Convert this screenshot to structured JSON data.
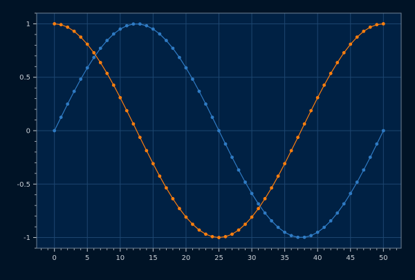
{
  "chart_data": {
    "type": "line",
    "title": "",
    "xlabel": "",
    "ylabel": "",
    "xlim": [
      -2.7,
      52.7
    ],
    "ylim": [
      -1.1,
      1.1
    ],
    "x_ticks": [
      0,
      5,
      10,
      15,
      20,
      25,
      30,
      35,
      40,
      45,
      50
    ],
    "y_ticks": [
      -1,
      -0.5,
      0,
      0.5,
      1
    ],
    "x_tick_labels": [
      "0",
      "5",
      "10",
      "15",
      "20",
      "25",
      "30",
      "35",
      "40",
      "45",
      "50"
    ],
    "y_tick_labels": [
      "-1",
      "-0.5",
      "0",
      "0.5",
      "1"
    ],
    "grid": true,
    "markers": true,
    "background_color": "#001326",
    "plot_background_color": "#002144",
    "grid_color": "#1d4670",
    "axis_color": "#c8cfd6",
    "x": [
      0,
      1,
      2,
      3,
      4,
      5,
      6,
      7,
      8,
      9,
      10,
      11,
      12,
      13,
      14,
      15,
      16,
      17,
      18,
      19,
      20,
      21,
      22,
      23,
      24,
      25,
      26,
      27,
      28,
      29,
      30,
      31,
      32,
      33,
      34,
      35,
      36,
      37,
      38,
      39,
      40,
      41,
      42,
      43,
      44,
      45,
      46,
      47,
      48,
      49,
      50
    ],
    "series": [
      {
        "color": "#2f7bc4",
        "values": [
          0,
          0.125,
          0.249,
          0.368,
          0.482,
          0.588,
          0.685,
          0.771,
          0.844,
          0.905,
          0.951,
          0.982,
          0.998,
          0.998,
          0.982,
          0.951,
          0.905,
          0.844,
          0.771,
          0.685,
          0.588,
          0.482,
          0.368,
          0.249,
          0.125,
          0,
          -0.125,
          -0.249,
          -0.368,
          -0.482,
          -0.588,
          -0.685,
          -0.771,
          -0.844,
          -0.905,
          -0.951,
          -0.982,
          -0.998,
          -0.998,
          -0.982,
          -0.951,
          -0.905,
          -0.844,
          -0.771,
          -0.685,
          -0.588,
          -0.482,
          -0.368,
          -0.249,
          -0.125,
          0
        ]
      },
      {
        "color": "#ff7f0e",
        "values": [
          1,
          0.992,
          0.969,
          0.93,
          0.876,
          0.809,
          0.729,
          0.637,
          0.536,
          0.426,
          0.309,
          0.187,
          0.063,
          -0.063,
          -0.187,
          -0.309,
          -0.426,
          -0.536,
          -0.637,
          -0.729,
          -0.809,
          -0.876,
          -0.93,
          -0.969,
          -0.992,
          -1,
          -0.992,
          -0.969,
          -0.93,
          -0.876,
          -0.809,
          -0.729,
          -0.637,
          -0.536,
          -0.426,
          -0.309,
          -0.187,
          -0.063,
          0.063,
          0.187,
          0.309,
          0.426,
          0.536,
          0.637,
          0.729,
          0.809,
          0.876,
          0.93,
          0.969,
          0.992,
          1
        ]
      }
    ]
  }
}
